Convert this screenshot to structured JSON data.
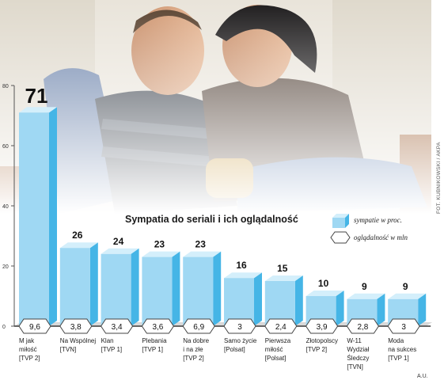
{
  "chart_data": {
    "type": "bar",
    "title": "Sympatia do seriali i ich oglądalność",
    "categories": [
      [
        "M jak",
        "miłość",
        "[TVP 2]"
      ],
      [
        "Na Wspólnej",
        "[TVN]"
      ],
      [
        "Klan",
        "[TVP 1]"
      ],
      [
        "Plebania",
        "[TVP 1]"
      ],
      [
        "Na dobre",
        "i na złe",
        "[TVP 2]"
      ],
      [
        "Samo życie",
        "[Polsat]"
      ],
      [
        "Pierwsza",
        "miłość",
        "[Polsat]"
      ],
      [
        "Złotopolscy",
        "[TVP 2]"
      ],
      [
        "W-11",
        "Wydział",
        "Śledczy",
        "[TVN]"
      ],
      [
        "Moda",
        "na sukces",
        "[TVP 1]"
      ]
    ],
    "series": [
      {
        "name": "sympatie w proc.",
        "values": [
          71,
          26,
          24,
          23,
          23,
          16,
          15,
          10,
          9,
          9
        ]
      },
      {
        "name": "oglądalność w mln",
        "values": [
          "9,6",
          "3,8",
          "3,4",
          "3,6",
          "6,9",
          "3",
          "2,4",
          "3,9",
          "2,8",
          "3"
        ]
      }
    ],
    "ylim": [
      0,
      80
    ],
    "yticks": [
      0,
      20,
      40,
      60,
      80
    ],
    "grid": false,
    "legend": "right",
    "colors": {
      "bar_front": "#9fd8f3",
      "bar_side": "#45b5e6",
      "bar_top": "#d4effb",
      "base": "#3a3a3a"
    }
  },
  "credit": "FOT. KUBNIKOWSKI / AKPA",
  "signature": "A.U."
}
